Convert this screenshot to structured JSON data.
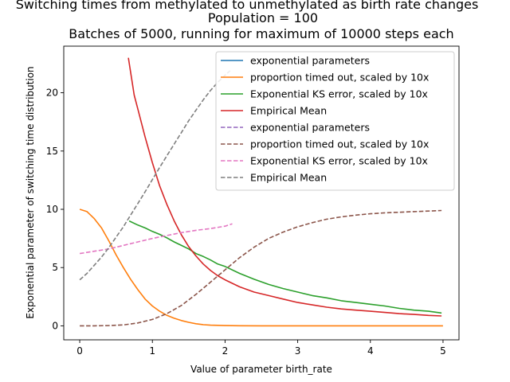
{
  "chart_data": {
    "type": "line",
    "title_lines": [
      "Switching times from methylated to unmethylated as birth rate changes",
      "Population = 100",
      "Batches of 5000, running for maximum of 10000 steps each"
    ],
    "xlabel": "Value of parameter birth_rate",
    "ylabel": "Exponential parameter of switching time distribution",
    "xlim": [
      -0.22,
      5.22
    ],
    "ylim": [
      -1.2,
      24.0
    ],
    "xticks": [
      "0",
      "1",
      "2",
      "3",
      "4",
      "5"
    ],
    "yticks": [
      "0",
      "5",
      "10",
      "15",
      "20"
    ],
    "legend_position": "top-right",
    "series": [
      {
        "name": "exponential parameters",
        "color": "#1f77b4",
        "dashed": false,
        "x": [],
        "y": []
      },
      {
        "name": "proportion timed out, scaled by 10x",
        "color": "#ff7f0e",
        "dashed": false,
        "x": [
          0.0,
          0.1,
          0.2,
          0.3,
          0.4,
          0.5,
          0.6,
          0.7,
          0.8,
          0.9,
          1.0,
          1.1,
          1.2,
          1.3,
          1.4,
          1.5,
          1.6,
          1.7,
          1.8,
          1.9,
          2.0,
          2.2,
          2.5,
          3.0,
          3.5,
          4.0,
          4.5,
          5.0
        ],
        "y": [
          10.0,
          9.8,
          9.2,
          8.4,
          7.3,
          6.1,
          5.0,
          4.0,
          3.1,
          2.3,
          1.7,
          1.25,
          0.9,
          0.65,
          0.45,
          0.3,
          0.18,
          0.1,
          0.06,
          0.04,
          0.02,
          0.01,
          0.0,
          0.0,
          0.0,
          0.0,
          0.0,
          0.0
        ]
      },
      {
        "name": "Exponential KS error, scaled by 10x",
        "color": "#2ca02c",
        "dashed": false,
        "x": [
          0.68,
          0.8,
          0.9,
          1.0,
          1.1,
          1.2,
          1.3,
          1.4,
          1.5,
          1.6,
          1.7,
          1.8,
          1.9,
          2.0,
          2.2,
          2.4,
          2.6,
          2.8,
          3.0,
          3.2,
          3.4,
          3.6,
          3.8,
          4.0,
          4.2,
          4.4,
          4.6,
          4.8,
          4.98
        ],
        "y": [
          9.0,
          8.65,
          8.4,
          8.1,
          7.85,
          7.55,
          7.2,
          6.9,
          6.6,
          6.2,
          5.95,
          5.65,
          5.3,
          5.1,
          4.5,
          4.0,
          3.55,
          3.2,
          2.9,
          2.6,
          2.4,
          2.15,
          2.0,
          1.85,
          1.7,
          1.5,
          1.35,
          1.25,
          1.1
        ]
      },
      {
        "name": "Empirical Mean",
        "color": "#d62728",
        "dashed": false,
        "x": [
          0.67,
          0.75,
          0.8,
          0.9,
          1.0,
          1.1,
          1.2,
          1.3,
          1.4,
          1.5,
          1.6,
          1.7,
          1.8,
          1.9,
          2.0,
          2.2,
          2.4,
          2.6,
          2.8,
          3.0,
          3.2,
          3.4,
          3.6,
          3.8,
          4.0,
          4.2,
          4.4,
          4.6,
          4.8,
          4.98
        ],
        "y": [
          23.0,
          19.8,
          18.6,
          16.2,
          14.0,
          12.0,
          10.4,
          9.0,
          7.8,
          6.8,
          6.0,
          5.3,
          4.75,
          4.3,
          3.95,
          3.35,
          2.9,
          2.6,
          2.3,
          2.0,
          1.8,
          1.6,
          1.45,
          1.35,
          1.25,
          1.15,
          1.05,
          0.98,
          0.9,
          0.85
        ]
      },
      {
        "name": "exponential parameters",
        "color": "#9467bd",
        "dashed": true,
        "x": [],
        "y": []
      },
      {
        "name": "proportion timed out, scaled by 10x",
        "color": "#8c564b",
        "dashed": true,
        "x": [
          0.0,
          0.2,
          0.4,
          0.6,
          0.8,
          1.0,
          1.2,
          1.4,
          1.6,
          1.8,
          2.0,
          2.2,
          2.4,
          2.6,
          2.8,
          3.0,
          3.2,
          3.4,
          3.6,
          3.8,
          4.0,
          4.2,
          4.4,
          4.6,
          4.8,
          4.98
        ],
        "y": [
          0.0,
          0.0,
          0.02,
          0.08,
          0.25,
          0.55,
          1.05,
          1.75,
          2.7,
          3.75,
          4.8,
          5.85,
          6.75,
          7.5,
          8.05,
          8.5,
          8.85,
          9.15,
          9.35,
          9.5,
          9.62,
          9.7,
          9.75,
          9.8,
          9.85,
          9.9
        ]
      },
      {
        "name": "Exponential KS error, scaled by 10x",
        "color": "#e377c2",
        "dashed": true,
        "x": [
          0.0,
          0.2,
          0.4,
          0.6,
          0.8,
          1.0,
          1.2,
          1.4,
          1.6,
          1.8,
          2.0,
          2.1
        ],
        "y": [
          6.2,
          6.4,
          6.6,
          6.9,
          7.2,
          7.5,
          7.75,
          8.0,
          8.2,
          8.35,
          8.55,
          8.75
        ]
      },
      {
        "name": "Empirical Mean",
        "color": "#7f7f7f",
        "dashed": true,
        "x": [
          0.0,
          0.1,
          0.2,
          0.3,
          0.4,
          0.5,
          0.6,
          0.7,
          0.8,
          0.9,
          1.0,
          1.1,
          1.2,
          1.3,
          1.4,
          1.5,
          1.6,
          1.7,
          1.8,
          1.9,
          2.0,
          2.07
        ],
        "y": [
          3.95,
          4.5,
          5.2,
          5.9,
          6.7,
          7.6,
          8.5,
          9.5,
          10.5,
          11.5,
          12.55,
          13.6,
          14.6,
          15.6,
          16.6,
          17.6,
          18.5,
          19.4,
          20.2,
          20.9,
          21.5,
          21.9
        ]
      }
    ]
  }
}
